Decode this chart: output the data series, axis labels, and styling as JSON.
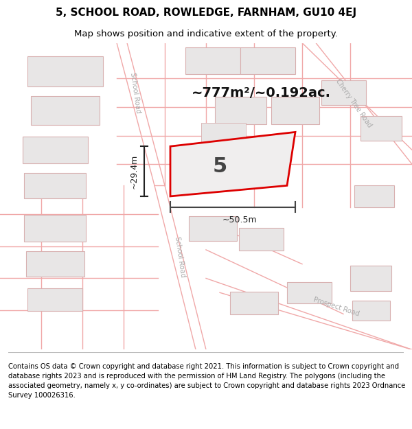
{
  "title": "5, SCHOOL ROAD, ROWLEDGE, FARNHAM, GU10 4EJ",
  "subtitle": "Map shows position and indicative extent of the property.",
  "area_text": "~777m²/~0.192ac.",
  "property_number": "5",
  "dim_width": "~50.5m",
  "dim_height": "~29.4m",
  "footer": "Contains OS data © Crown copyright and database right 2021. This information is subject to Crown copyright and database rights 2023 and is reproduced with the permission of HM Land Registry. The polygons (including the associated geometry, namely x, y co-ordinates) are subject to Crown copyright and database rights 2023 Ordnance Survey 100026316.",
  "bg_color": "#ffffff",
  "map_bg": "#ffffff",
  "road_line_color": "#f0a8a8",
  "building_fill": "#e8e6e6",
  "building_edge": "#d8b0b0",
  "property_fill": "#f0eeee",
  "property_edge": "#dd0000",
  "title_fontsize": 11,
  "subtitle_fontsize": 9.5,
  "footer_fontsize": 7.2,
  "road_label_color": "#aaaaaa",
  "dim_color": "#222222"
}
